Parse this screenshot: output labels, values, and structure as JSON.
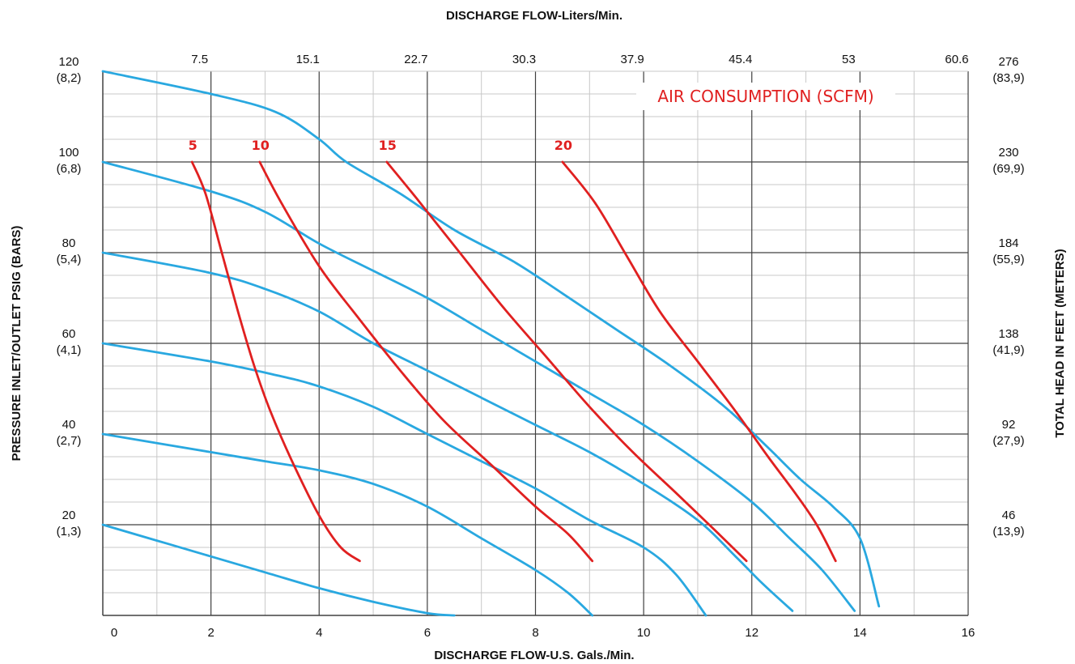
{
  "chart_data": {
    "type": "line",
    "title": "",
    "top_axis_title": "DISCHARGE FLOW-Liters/Min.",
    "bottom_axis_title": "DISCHARGE FLOW-U.S. Gals./Min.",
    "left_axis_title": "PRESSURE INLET/OUTLET PSIG (BARS)",
    "right_axis_title": "TOTAL HEAD IN FEET (METERS)",
    "annotation": "AIR CONSUMPTION (SCFM)",
    "xlim": [
      0,
      16
    ],
    "ylim": [
      0,
      120
    ],
    "grid": true,
    "bottom_ticks": [
      {
        "value": 0,
        "label": "0"
      },
      {
        "value": 2,
        "label": "2"
      },
      {
        "value": 4,
        "label": "4"
      },
      {
        "value": 6,
        "label": "6"
      },
      {
        "value": 8,
        "label": "8"
      },
      {
        "value": 10,
        "label": "10"
      },
      {
        "value": 12,
        "label": "12"
      },
      {
        "value": 14,
        "label": "14"
      },
      {
        "value": 16,
        "label": "16"
      }
    ],
    "top_ticks": [
      {
        "value": 2,
        "label": "7.5"
      },
      {
        "value": 4,
        "label": "15.1"
      },
      {
        "value": 6,
        "label": "22.7"
      },
      {
        "value": 8,
        "label": "30.3"
      },
      {
        "value": 10,
        "label": "37.9"
      },
      {
        "value": 12,
        "label": "45.4"
      },
      {
        "value": 14,
        "label": "53"
      },
      {
        "value": 16,
        "label": "60.6"
      }
    ],
    "left_ticks": [
      {
        "value": 20,
        "psi": "20",
        "bar": "(1,3)"
      },
      {
        "value": 40,
        "psi": "40",
        "bar": "(2,7)"
      },
      {
        "value": 60,
        "psi": "60",
        "bar": "(4,1)"
      },
      {
        "value": 80,
        "psi": "80",
        "bar": "(5,4)"
      },
      {
        "value": 100,
        "psi": "100",
        "bar": "(6,8)"
      },
      {
        "value": 120,
        "psi": "120",
        "bar": "(8,2)"
      }
    ],
    "right_ticks": [
      {
        "value": 20,
        "feet": "46",
        "meters": "(13,9)"
      },
      {
        "value": 40,
        "feet": "92",
        "meters": "(27,9)"
      },
      {
        "value": 60,
        "feet": "138",
        "meters": "(41,9)"
      },
      {
        "value": 80,
        "feet": "184",
        "meters": "(55,9)"
      },
      {
        "value": 100,
        "feet": "230",
        "meters": "(69,9)"
      },
      {
        "value": 120,
        "feet": "276",
        "meters": "(83,9)"
      }
    ],
    "performance_color": "#29a8e0",
    "air_color": "#e02020",
    "performance_curves": [
      {
        "points": [
          [
            0,
            120
          ],
          [
            2,
            115
          ],
          [
            3.2,
            111
          ],
          [
            4,
            105
          ],
          [
            4.5,
            100
          ],
          [
            5.5,
            93
          ],
          [
            6.5,
            85
          ],
          [
            7.6,
            78
          ],
          [
            8.5,
            71
          ],
          [
            9.5,
            63
          ],
          [
            10.5,
            55
          ],
          [
            11.5,
            46
          ],
          [
            12.3,
            37
          ],
          [
            12.9,
            30
          ],
          [
            13.5,
            24
          ],
          [
            14,
            17
          ],
          [
            14.35,
            2
          ]
        ]
      },
      {
        "points": [
          [
            0,
            100
          ],
          [
            2,
            93.5
          ],
          [
            3,
            89
          ],
          [
            4,
            82
          ],
          [
            5,
            76
          ],
          [
            6,
            70
          ],
          [
            7,
            63
          ],
          [
            8,
            56
          ],
          [
            9,
            49
          ],
          [
            10,
            42
          ],
          [
            11,
            34
          ],
          [
            12,
            25
          ],
          [
            12.7,
            17
          ],
          [
            13.3,
            10
          ],
          [
            13.9,
            1
          ]
        ]
      },
      {
        "points": [
          [
            0,
            80
          ],
          [
            2,
            75.5
          ],
          [
            3,
            72
          ],
          [
            4,
            67
          ],
          [
            5,
            60
          ],
          [
            6,
            54
          ],
          [
            7,
            48
          ],
          [
            8,
            42
          ],
          [
            9,
            36
          ],
          [
            10,
            29
          ],
          [
            11,
            21
          ],
          [
            11.7,
            13
          ],
          [
            12.2,
            7
          ],
          [
            12.75,
            1
          ]
        ]
      },
      {
        "points": [
          [
            0,
            60
          ],
          [
            2,
            56
          ],
          [
            3.2,
            53
          ],
          [
            4,
            50.5
          ],
          [
            5,
            46
          ],
          [
            6,
            40
          ],
          [
            7,
            34
          ],
          [
            8,
            28
          ],
          [
            9,
            21
          ],
          [
            10,
            15
          ],
          [
            10.6,
            9
          ],
          [
            11.15,
            0
          ]
        ]
      },
      {
        "points": [
          [
            0,
            40
          ],
          [
            2,
            36
          ],
          [
            3,
            34
          ],
          [
            4,
            32
          ],
          [
            5,
            29
          ],
          [
            6,
            24
          ],
          [
            7,
            17
          ],
          [
            8,
            10
          ],
          [
            8.6,
            5
          ],
          [
            9.05,
            0
          ]
        ]
      },
      {
        "points": [
          [
            0,
            20
          ],
          [
            1,
            16.5
          ],
          [
            2,
            13
          ],
          [
            3,
            9.5
          ],
          [
            4,
            6
          ],
          [
            5,
            3
          ],
          [
            6,
            0.5
          ],
          [
            6.5,
            0
          ]
        ]
      }
    ],
    "air_curves": [
      {
        "label": "5",
        "points": [
          [
            1.65,
            100
          ],
          [
            1.9,
            93
          ],
          [
            2.2,
            80
          ],
          [
            2.5,
            67
          ],
          [
            2.8,
            55
          ],
          [
            3.1,
            45
          ],
          [
            3.5,
            34
          ],
          [
            4,
            22
          ],
          [
            4.4,
            15
          ],
          [
            4.75,
            12
          ]
        ]
      },
      {
        "label": "10",
        "points": [
          [
            2.9,
            100
          ],
          [
            3.3,
            91
          ],
          [
            4,
            77
          ],
          [
            4.7,
            66
          ],
          [
            5.5,
            54
          ],
          [
            6.3,
            43
          ],
          [
            7.2,
            33
          ],
          [
            8,
            24
          ],
          [
            8.6,
            18
          ],
          [
            9.05,
            12
          ]
        ]
      },
      {
        "label": "15",
        "points": [
          [
            5.25,
            100
          ],
          [
            5.8,
            92
          ],
          [
            6.6,
            80
          ],
          [
            7.4,
            68
          ],
          [
            8.2,
            57
          ],
          [
            9,
            46
          ],
          [
            9.8,
            36
          ],
          [
            10.6,
            27
          ],
          [
            11.3,
            19
          ],
          [
            11.9,
            12
          ]
        ]
      },
      {
        "label": "20",
        "points": [
          [
            8.5,
            100
          ],
          [
            9.1,
            91
          ],
          [
            9.7,
            79
          ],
          [
            10.3,
            67
          ],
          [
            11,
            56
          ],
          [
            11.7,
            45
          ],
          [
            12.3,
            35
          ],
          [
            12.8,
            27
          ],
          [
            13.2,
            20
          ],
          [
            13.55,
            12
          ]
        ]
      }
    ]
  }
}
